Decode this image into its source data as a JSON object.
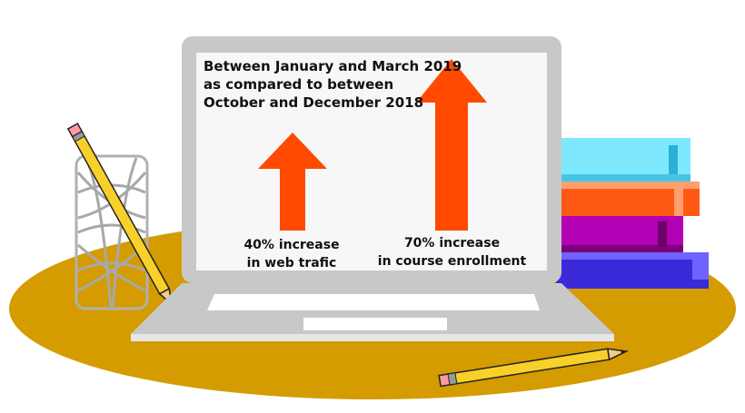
{
  "heading": {
    "line1": "Between January and March 2019",
    "line2": "as compared to between",
    "line3": "October and December 2018"
  },
  "stats": [
    {
      "line1": "40% increase",
      "line2": "in web trafic",
      "value": 40
    },
    {
      "line1": "70% increase",
      "line2": "in course enrollment",
      "value": 70
    }
  ],
  "colors": {
    "arrow": "#ff4a00",
    "table": "#d49c00",
    "laptop": "#c8c8c8",
    "screen": "#f7f7f7",
    "book_cyan": "#7ee8ff",
    "book_orange": "#ff5a14",
    "book_magenta": "#b400b4",
    "book_blue": "#3a2ad8",
    "pencil": "#f7d12a"
  }
}
